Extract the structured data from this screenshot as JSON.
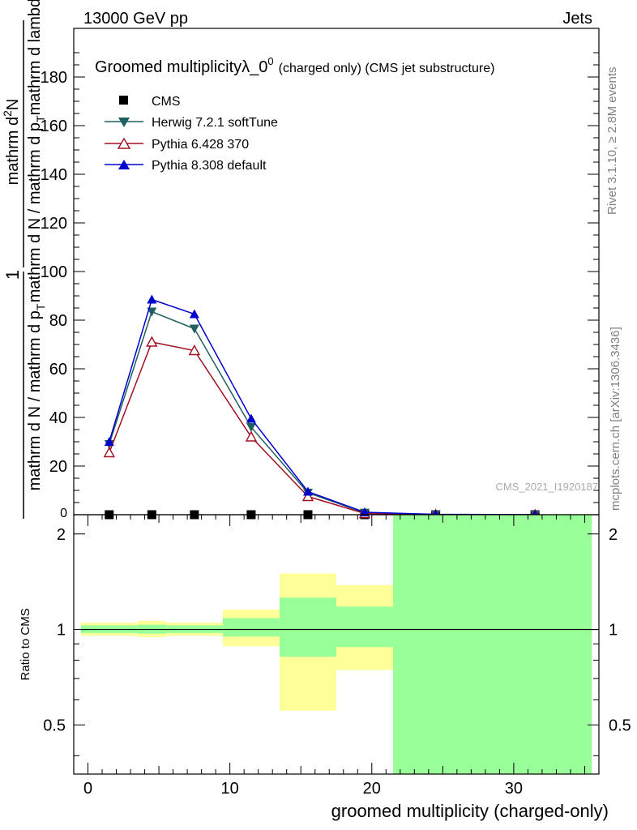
{
  "header": {
    "left": "13000 GeV pp",
    "right": "Jets"
  },
  "side_labels": {
    "rivet": "Rivet 3.1.10, ≥ 2.8M events",
    "mcplots": "mcplots.cern.ch [arXiv:1306.3436]"
  },
  "watermark": "CMS_2021_I1920187",
  "chart_data": [
    {
      "type": "line",
      "title_main": "Groomed multiplicityλ_0",
      "title_sup": "0",
      "title_suffix": "(charged only) (CMS jet substructure)",
      "ylabel_parts": {
        "numerator_top": "mathrm d",
        "numerator_sup": "2",
        "numerator_rest": "N",
        "one": "1",
        "frac_left": "mathrm d N / mathrm d p",
        "frac_sub": "T",
        "frac_right": "mathrm d p",
        "frac_right_sub": "T",
        "frac_end": "mathrm d lambda"
      },
      "ylabel": "1 / (mathrm d N / mathrm d p_T) mathrm d^2N / mathrm d p_T mathrm d lambda",
      "xlim": [
        -1,
        36
      ],
      "ylim": [
        0,
        200
      ],
      "yticks": [
        20,
        40,
        60,
        80,
        100,
        120,
        140,
        160,
        180
      ],
      "ytick_labels": [
        "20",
        "40",
        "60",
        "80",
        "100",
        "120",
        "140",
        "160",
        "180"
      ],
      "x": [
        1.5,
        4.5,
        7.5,
        11.5,
        15.5,
        19.5,
        24.5,
        31.5
      ],
      "series": [
        {
          "name": "CMS",
          "marker": "square",
          "color": "#000000",
          "values": [
            0,
            0,
            0,
            0,
            0,
            0,
            0,
            0
          ]
        },
        {
          "name": "Herwig 7.2.1 softTune",
          "marker": "triangle-down",
          "color": "#1f5f5f",
          "values": [
            29,
            83.5,
            76.5,
            36,
            9,
            0.8,
            0.1,
            0
          ]
        },
        {
          "name": "Pythia 6.428 370",
          "marker": "triangle-open",
          "color": "#a01020",
          "values": [
            25.5,
            71,
            67.5,
            32,
            7.5,
            0.5,
            0.05,
            0
          ]
        },
        {
          "name": "Pythia 8.308 default",
          "marker": "triangle-up",
          "color": "#0000cc",
          "values": [
            30,
            88.5,
            82.5,
            39.5,
            9.5,
            1.0,
            0.15,
            0
          ]
        }
      ],
      "legend_position": "top-left"
    },
    {
      "type": "area",
      "ylabel": "Ratio to CMS",
      "xlabel": "groomed multiplicity (charged-only)",
      "xlim": [
        -1,
        36
      ],
      "ylim": [
        0.35,
        2.3
      ],
      "yscale": "log",
      "xticks": [
        0,
        10,
        20,
        30
      ],
      "xtick_labels": [
        "0",
        "10",
        "20",
        "30"
      ],
      "yticks": [
        0.5,
        1,
        2
      ],
      "ytick_labels": [
        "0.5",
        "1",
        "2"
      ],
      "reference_line": 1,
      "bins": [
        {
          "lo": -0.5,
          "hi": 3.5,
          "stat": [
            0.975,
            1.03
          ],
          "total": [
            0.955,
            1.05
          ]
        },
        {
          "lo": 3.5,
          "hi": 5.5,
          "stat": [
            0.97,
            1.035
          ],
          "total": [
            0.945,
            1.065
          ]
        },
        {
          "lo": 5.5,
          "hi": 9.5,
          "stat": [
            0.975,
            1.03
          ],
          "total": [
            0.955,
            1.05
          ]
        },
        {
          "lo": 9.5,
          "hi": 13.5,
          "stat": [
            0.95,
            1.085
          ],
          "total": [
            0.885,
            1.155
          ]
        },
        {
          "lo": 13.5,
          "hi": 17.5,
          "stat": [
            0.82,
            1.26
          ],
          "total": [
            0.555,
            1.5
          ]
        },
        {
          "lo": 17.5,
          "hi": 21.5,
          "stat": [
            0.88,
            1.18
          ],
          "total": [
            0.745,
            1.38
          ]
        },
        {
          "lo": 21.5,
          "hi": 35.5,
          "stat": [
            0.35,
            2.3
          ],
          "total": [
            0.35,
            2.3
          ]
        }
      ],
      "colors": {
        "stat": "#99ff99",
        "total": "#ffff99"
      }
    }
  ]
}
